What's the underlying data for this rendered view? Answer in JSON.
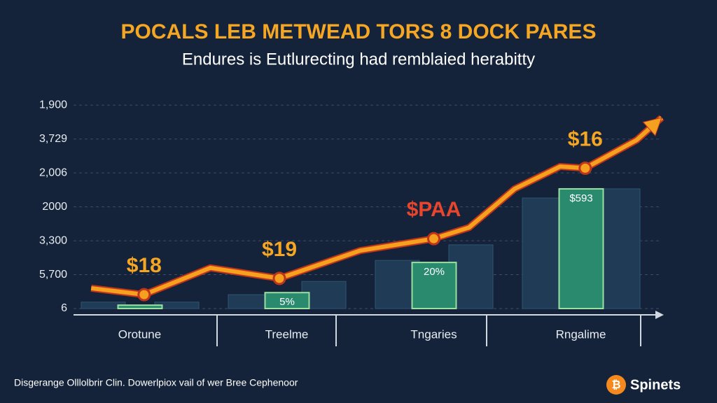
{
  "chart_data": {
    "type": "bar",
    "title": "POCALS LEB METWEAD TORS 8 DOCK PARES",
    "subtitle": "Endures is Eutlurecting had remblaied herabitty",
    "categories": [
      "Orotune",
      "Treelme",
      "Tngaries",
      "Rngalime"
    ],
    "ylim": [
      0,
      6.5
    ],
    "yticks": [
      {
        "value": 0,
        "label": "6"
      },
      {
        "value": 1,
        "label": "5,700"
      },
      {
        "value": 2,
        "label": "3,300"
      },
      {
        "value": 3,
        "label": "2000"
      },
      {
        "value": 4,
        "label": "2,006"
      },
      {
        "value": 5,
        "label": "3,729"
      },
      {
        "value": 6,
        "label": "1,900"
      }
    ],
    "grid": true,
    "series": [
      {
        "type": "bar",
        "color": "#1f3b55",
        "values": [
          0.19,
          0.41,
          1.42,
          3.26
        ]
      },
      {
        "type": "bar",
        "color": "#1f3b55",
        "values": [
          0.19,
          0.8,
          1.88,
          3.53
        ]
      },
      {
        "type": "bar",
        "color": "#2a8a6e",
        "values": [
          0.1,
          0.47,
          1.36,
          3.53
        ],
        "labels": [
          null,
          "5%",
          "20%",
          "$593"
        ]
      },
      {
        "type": "line",
        "color": "#f5a01e",
        "x": [
          0.12,
          0.48,
          0.93,
          1.4,
          1.95,
          2.45,
          2.69,
          3.0,
          3.31,
          3.48,
          3.83,
          4.0
        ],
        "values": [
          0.6,
          0.41,
          1.2,
          0.89,
          1.71,
          2.06,
          2.39,
          3.53,
          4.19,
          4.14,
          4.97,
          5.63
        ],
        "labels": [
          null,
          "$18",
          null,
          "$19",
          null,
          "$PAA",
          null,
          null,
          null,
          "$16",
          null,
          null
        ],
        "label_colors": [
          null,
          "#f5a623",
          null,
          "#f5a623",
          null,
          "#e8452c",
          null,
          null,
          null,
          "#f5a623",
          null,
          null
        ]
      }
    ],
    "footer": "Disgerange Olllolbrir Clin. Dowerlpiox vail of wer Bree Cephenoor",
    "brand": "Spinets"
  }
}
